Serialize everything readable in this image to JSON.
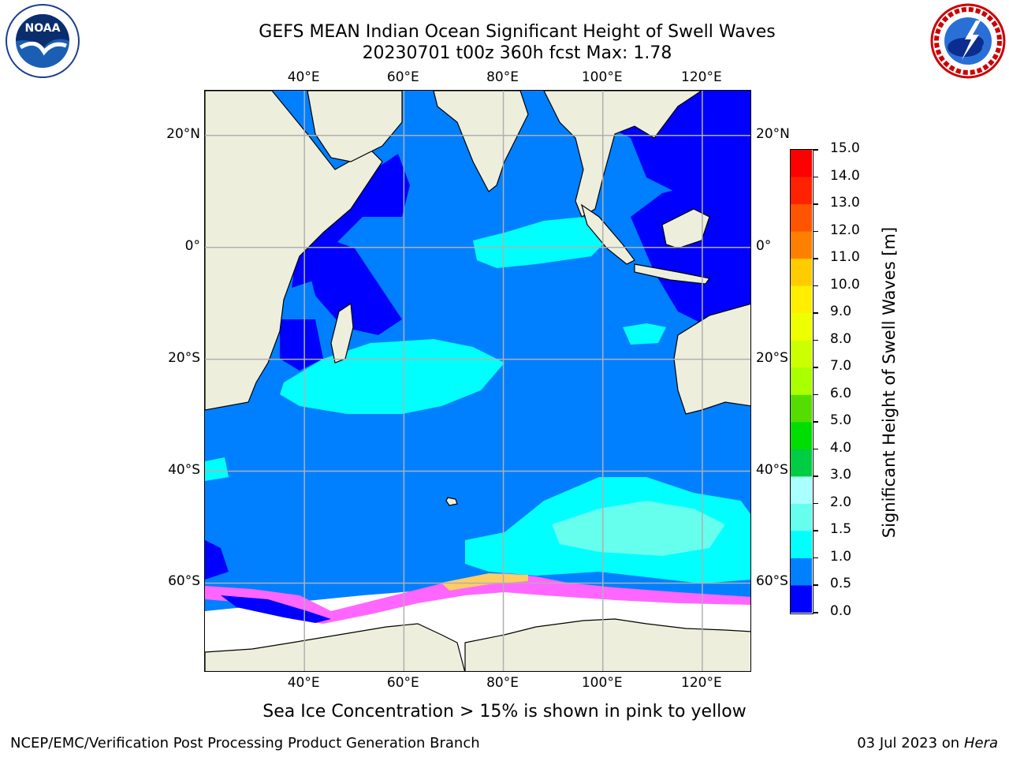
{
  "title_line1": "GEFS MEAN Indian Ocean Significant Height of Swell Waves",
  "title_line2": "20230701 t00z 360h fcst   Max: 1.78",
  "logos": {
    "left": "noaa-logo",
    "left_text": "NOAA",
    "right": "nws-logo"
  },
  "map": {
    "lon_range": [
      20,
      130
    ],
    "lat_range": [
      -76,
      28
    ],
    "lon_ticks": [
      "40°E",
      "60°E",
      "80°E",
      "100°E",
      "120°E"
    ],
    "lat_ticks_left": [
      "20°N",
      "0°",
      "20°S",
      "40°S",
      "60°S"
    ],
    "lat_ticks_right": [
      "20°N",
      "0°",
      "20°S",
      "40°S",
      "60°S"
    ],
    "colors": {
      "land": "#eeeedd",
      "band_0_0.5": "#0000ff",
      "band_0.5_1.0": "#0080ff",
      "band_1.0_1.5": "#00ffff",
      "band_1.5_2.0": "#66ffee",
      "sea_ice": "#ff66ff",
      "sea_ice_high": "#ffcc66",
      "ice_shelf": "#ffffff",
      "grid": "#b0b0b0"
    }
  },
  "colorbar": {
    "labels": [
      "15.0",
      "14.0",
      "13.0",
      "12.0",
      "11.0",
      "10.0",
      "9.0",
      "8.0",
      "7.0",
      "6.0",
      "5.0",
      "4.0",
      "3.0",
      "2.0",
      "1.5",
      "1.0",
      "0.5",
      "0.0"
    ],
    "colors": [
      "#ff0000",
      "#ff2200",
      "#ff5500",
      "#ff8000",
      "#ffaa00",
      "#ffcc00",
      "#ffee00",
      "#eeff00",
      "#ccff00",
      "#aaff00",
      "#55dd00",
      "#00dd00",
      "#00cc44",
      "#55ff88",
      "#aaffff",
      "#66ffee",
      "#00ffff",
      "#0080ff",
      "#0000ff"
    ],
    "title": "Significant Height of Swell Waves [m]"
  },
  "footnote": "Sea Ice Concentration > 15% is shown in pink to yellow",
  "credit": "NCEP/EMC/Verification Post Processing Product Generation Branch",
  "run_date": "03 Jul 2023 on",
  "machine": "Hera"
}
